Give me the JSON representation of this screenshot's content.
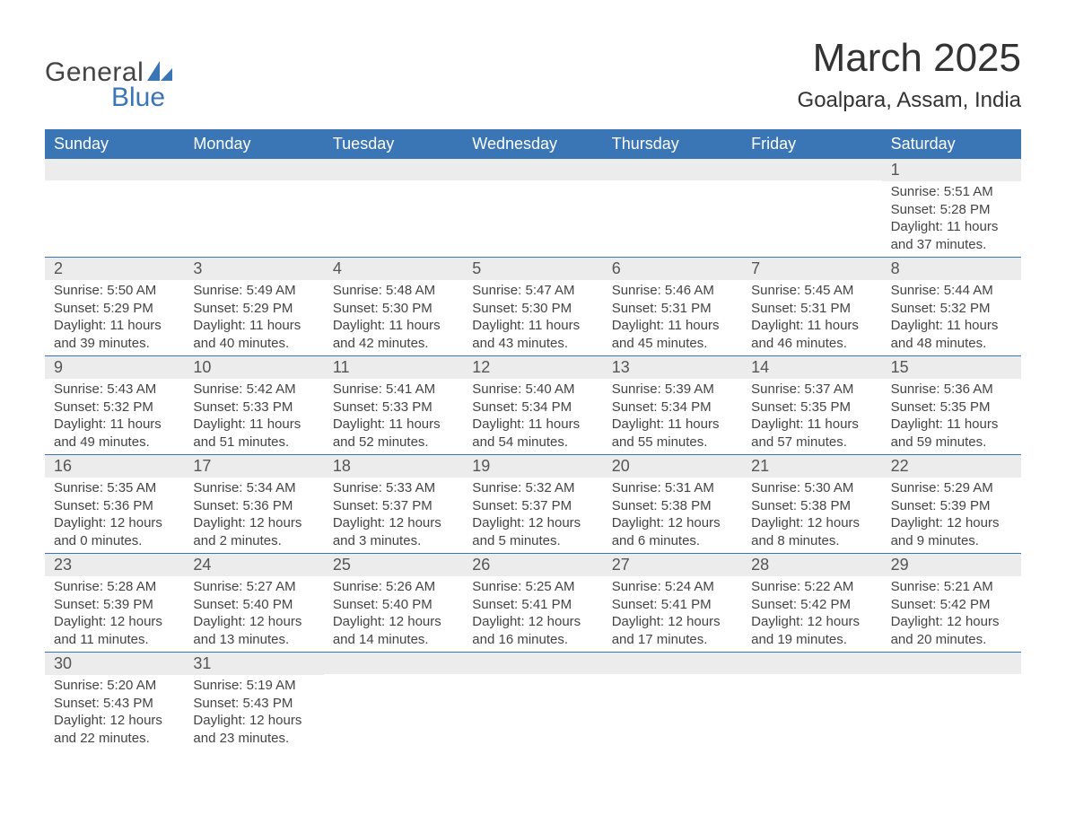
{
  "logo": {
    "word1": "General",
    "word2": "Blue",
    "sail_color": "#3a76b6",
    "text_color": "#444444"
  },
  "header": {
    "title": "March 2025",
    "location": "Goalpara, Assam, India"
  },
  "calendar": {
    "type": "table",
    "accent_color": "#3a76b6",
    "band_color": "#ececec",
    "text_color": "#444444",
    "columns": [
      "Sunday",
      "Monday",
      "Tuesday",
      "Wednesday",
      "Thursday",
      "Friday",
      "Saturday"
    ],
    "weeks": [
      [
        null,
        null,
        null,
        null,
        null,
        null,
        {
          "n": "1",
          "sunrise": "Sunrise: 5:51 AM",
          "sunset": "Sunset: 5:28 PM",
          "d1": "Daylight: 11 hours",
          "d2": "and 37 minutes."
        }
      ],
      [
        {
          "n": "2",
          "sunrise": "Sunrise: 5:50 AM",
          "sunset": "Sunset: 5:29 PM",
          "d1": "Daylight: 11 hours",
          "d2": "and 39 minutes."
        },
        {
          "n": "3",
          "sunrise": "Sunrise: 5:49 AM",
          "sunset": "Sunset: 5:29 PM",
          "d1": "Daylight: 11 hours",
          "d2": "and 40 minutes."
        },
        {
          "n": "4",
          "sunrise": "Sunrise: 5:48 AM",
          "sunset": "Sunset: 5:30 PM",
          "d1": "Daylight: 11 hours",
          "d2": "and 42 minutes."
        },
        {
          "n": "5",
          "sunrise": "Sunrise: 5:47 AM",
          "sunset": "Sunset: 5:30 PM",
          "d1": "Daylight: 11 hours",
          "d2": "and 43 minutes."
        },
        {
          "n": "6",
          "sunrise": "Sunrise: 5:46 AM",
          "sunset": "Sunset: 5:31 PM",
          "d1": "Daylight: 11 hours",
          "d2": "and 45 minutes."
        },
        {
          "n": "7",
          "sunrise": "Sunrise: 5:45 AM",
          "sunset": "Sunset: 5:31 PM",
          "d1": "Daylight: 11 hours",
          "d2": "and 46 minutes."
        },
        {
          "n": "8",
          "sunrise": "Sunrise: 5:44 AM",
          "sunset": "Sunset: 5:32 PM",
          "d1": "Daylight: 11 hours",
          "d2": "and 48 minutes."
        }
      ],
      [
        {
          "n": "9",
          "sunrise": "Sunrise: 5:43 AM",
          "sunset": "Sunset: 5:32 PM",
          "d1": "Daylight: 11 hours",
          "d2": "and 49 minutes."
        },
        {
          "n": "10",
          "sunrise": "Sunrise: 5:42 AM",
          "sunset": "Sunset: 5:33 PM",
          "d1": "Daylight: 11 hours",
          "d2": "and 51 minutes."
        },
        {
          "n": "11",
          "sunrise": "Sunrise: 5:41 AM",
          "sunset": "Sunset: 5:33 PM",
          "d1": "Daylight: 11 hours",
          "d2": "and 52 minutes."
        },
        {
          "n": "12",
          "sunrise": "Sunrise: 5:40 AM",
          "sunset": "Sunset: 5:34 PM",
          "d1": "Daylight: 11 hours",
          "d2": "and 54 minutes."
        },
        {
          "n": "13",
          "sunrise": "Sunrise: 5:39 AM",
          "sunset": "Sunset: 5:34 PM",
          "d1": "Daylight: 11 hours",
          "d2": "and 55 minutes."
        },
        {
          "n": "14",
          "sunrise": "Sunrise: 5:37 AM",
          "sunset": "Sunset: 5:35 PM",
          "d1": "Daylight: 11 hours",
          "d2": "and 57 minutes."
        },
        {
          "n": "15",
          "sunrise": "Sunrise: 5:36 AM",
          "sunset": "Sunset: 5:35 PM",
          "d1": "Daylight: 11 hours",
          "d2": "and 59 minutes."
        }
      ],
      [
        {
          "n": "16",
          "sunrise": "Sunrise: 5:35 AM",
          "sunset": "Sunset: 5:36 PM",
          "d1": "Daylight: 12 hours",
          "d2": "and 0 minutes."
        },
        {
          "n": "17",
          "sunrise": "Sunrise: 5:34 AM",
          "sunset": "Sunset: 5:36 PM",
          "d1": "Daylight: 12 hours",
          "d2": "and 2 minutes."
        },
        {
          "n": "18",
          "sunrise": "Sunrise: 5:33 AM",
          "sunset": "Sunset: 5:37 PM",
          "d1": "Daylight: 12 hours",
          "d2": "and 3 minutes."
        },
        {
          "n": "19",
          "sunrise": "Sunrise: 5:32 AM",
          "sunset": "Sunset: 5:37 PM",
          "d1": "Daylight: 12 hours",
          "d2": "and 5 minutes."
        },
        {
          "n": "20",
          "sunrise": "Sunrise: 5:31 AM",
          "sunset": "Sunset: 5:38 PM",
          "d1": "Daylight: 12 hours",
          "d2": "and 6 minutes."
        },
        {
          "n": "21",
          "sunrise": "Sunrise: 5:30 AM",
          "sunset": "Sunset: 5:38 PM",
          "d1": "Daylight: 12 hours",
          "d2": "and 8 minutes."
        },
        {
          "n": "22",
          "sunrise": "Sunrise: 5:29 AM",
          "sunset": "Sunset: 5:39 PM",
          "d1": "Daylight: 12 hours",
          "d2": "and 9 minutes."
        }
      ],
      [
        {
          "n": "23",
          "sunrise": "Sunrise: 5:28 AM",
          "sunset": "Sunset: 5:39 PM",
          "d1": "Daylight: 12 hours",
          "d2": "and 11 minutes."
        },
        {
          "n": "24",
          "sunrise": "Sunrise: 5:27 AM",
          "sunset": "Sunset: 5:40 PM",
          "d1": "Daylight: 12 hours",
          "d2": "and 13 minutes."
        },
        {
          "n": "25",
          "sunrise": "Sunrise: 5:26 AM",
          "sunset": "Sunset: 5:40 PM",
          "d1": "Daylight: 12 hours",
          "d2": "and 14 minutes."
        },
        {
          "n": "26",
          "sunrise": "Sunrise: 5:25 AM",
          "sunset": "Sunset: 5:41 PM",
          "d1": "Daylight: 12 hours",
          "d2": "and 16 minutes."
        },
        {
          "n": "27",
          "sunrise": "Sunrise: 5:24 AM",
          "sunset": "Sunset: 5:41 PM",
          "d1": "Daylight: 12 hours",
          "d2": "and 17 minutes."
        },
        {
          "n": "28",
          "sunrise": "Sunrise: 5:22 AM",
          "sunset": "Sunset: 5:42 PM",
          "d1": "Daylight: 12 hours",
          "d2": "and 19 minutes."
        },
        {
          "n": "29",
          "sunrise": "Sunrise: 5:21 AM",
          "sunset": "Sunset: 5:42 PM",
          "d1": "Daylight: 12 hours",
          "d2": "and 20 minutes."
        }
      ],
      [
        {
          "n": "30",
          "sunrise": "Sunrise: 5:20 AM",
          "sunset": "Sunset: 5:43 PM",
          "d1": "Daylight: 12 hours",
          "d2": "and 22 minutes."
        },
        {
          "n": "31",
          "sunrise": "Sunrise: 5:19 AM",
          "sunset": "Sunset: 5:43 PM",
          "d1": "Daylight: 12 hours",
          "d2": "and 23 minutes."
        },
        null,
        null,
        null,
        null,
        null
      ]
    ]
  }
}
